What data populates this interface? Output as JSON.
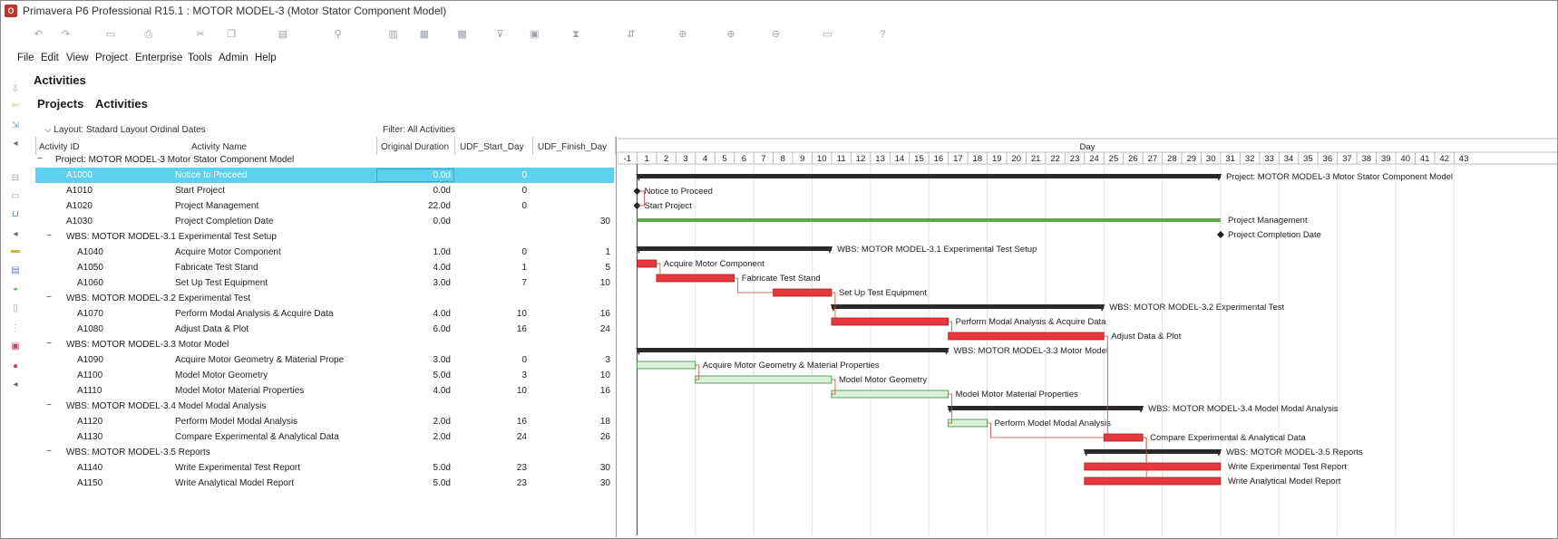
{
  "app": {
    "title": "Primavera P6 Professional R15.1 : MOTOR MODEL-3 (Motor Stator Component Model)",
    "logo_label": "O"
  },
  "menu": [
    "File",
    "Edit",
    "View",
    "Project",
    "Enterprise",
    "Tools",
    "Admin",
    "Help"
  ],
  "toolbar_icons": [
    "undo-icon",
    "redo-icon",
    "save-icon",
    "print-icon",
    "cut-icon",
    "copy-icon",
    "paste-icon",
    "link-icon",
    "layout-icon",
    "columns-icon",
    "bars-icon",
    "filter-icon",
    "group-icon",
    "schedule-icon",
    "level-icon",
    "assign-icon",
    "zoom-in-icon",
    "zoom-out-icon",
    "refresh-icon",
    "help-icon"
  ],
  "page": {
    "heading": "Activities",
    "tabs": {
      "projects": "Projects",
      "activities": "Activities"
    },
    "layout_label": "Layout: Stadard Layout Ordinal Dates",
    "filter_label": "Filter: All Activities"
  },
  "columns": {
    "activity_id": "Activity ID",
    "activity_name": "Activity Name",
    "original_duration": "Original Duration",
    "udf_start": "UDF_Start_Day",
    "udf_finish": "UDF_Finish_Day"
  },
  "rows": [
    {
      "type": "project",
      "id": "",
      "name": "Project: MOTOR MODEL-3  Motor Stator Component Model",
      "dur": "",
      "start": "",
      "finish": "",
      "expander": "−"
    },
    {
      "type": "activity",
      "id": "A1000",
      "name": "Notice to Proceed",
      "dur": "0.0d",
      "start": "0",
      "finish": "",
      "selected": true
    },
    {
      "type": "activity",
      "id": "A1010",
      "name": "Start Project",
      "dur": "0.0d",
      "start": "0",
      "finish": ""
    },
    {
      "type": "activity",
      "id": "A1020",
      "name": "Project Management",
      "dur": "22.0d",
      "start": "0",
      "finish": ""
    },
    {
      "type": "activity",
      "id": "A1030",
      "name": "Project Completion Date",
      "dur": "0.0d",
      "start": "",
      "finish": "30"
    },
    {
      "type": "wbs",
      "id": "",
      "name": "WBS: MOTOR MODEL-3.1  Experimental Test Setup",
      "dur": "",
      "start": "",
      "finish": "",
      "expander": "−"
    },
    {
      "type": "activity2",
      "id": "A1040",
      "name": "Acquire Motor Component",
      "dur": "1.0d",
      "start": "0",
      "finish": "1"
    },
    {
      "type": "activity2",
      "id": "A1050",
      "name": "Fabricate Test Stand",
      "dur": "4.0d",
      "start": "1",
      "finish": "5"
    },
    {
      "type": "activity2",
      "id": "A1060",
      "name": "Set Up Test Equipment",
      "dur": "3.0d",
      "start": "7",
      "finish": "10"
    },
    {
      "type": "wbs",
      "id": "",
      "name": "WBS: MOTOR MODEL-3.2  Experimental Test",
      "dur": "",
      "start": "",
      "finish": "",
      "expander": "−"
    },
    {
      "type": "activity2",
      "id": "A1070",
      "name": "Perform Modal Analysis & Acquire Data",
      "dur": "4.0d",
      "start": "10",
      "finish": "16"
    },
    {
      "type": "activity2",
      "id": "A1080",
      "name": "Adjust Data & Plot",
      "dur": "6.0d",
      "start": "16",
      "finish": "24"
    },
    {
      "type": "wbs",
      "id": "",
      "name": "WBS: MOTOR MODEL-3.3  Motor Model",
      "dur": "",
      "start": "",
      "finish": "",
      "expander": "−"
    },
    {
      "type": "activity2",
      "id": "A1090",
      "name": "Acquire Motor Geometry & Material Propertie",
      "dur": "3.0d",
      "start": "0",
      "finish": "3"
    },
    {
      "type": "activity2",
      "id": "A1100",
      "name": "Model Motor Geometry",
      "dur": "5.0d",
      "start": "3",
      "finish": "10"
    },
    {
      "type": "activity2",
      "id": "A1110",
      "name": "Model Motor Material Properties",
      "dur": "4.0d",
      "start": "10",
      "finish": "16"
    },
    {
      "type": "wbs",
      "id": "",
      "name": "WBS: MOTOR MODEL-3.4  Model Modal Analysis",
      "dur": "",
      "start": "",
      "finish": "",
      "expander": "−"
    },
    {
      "type": "activity2",
      "id": "A1120",
      "name": "Perform Model Modal Analysis",
      "dur": "2.0d",
      "start": "16",
      "finish": "18"
    },
    {
      "type": "activity2",
      "id": "A1130",
      "name": "Compare Experimental & Analytical Data",
      "dur": "2.0d",
      "start": "24",
      "finish": "26"
    },
    {
      "type": "wbs",
      "id": "",
      "name": "WBS: MOTOR MODEL-3.5  Reports",
      "dur": "",
      "start": "",
      "finish": "",
      "expander": "−"
    },
    {
      "type": "activity2",
      "id": "A1140",
      "name": "Write Experimental Test Report",
      "dur": "5.0d",
      "start": "23",
      "finish": "30"
    },
    {
      "type": "activity2",
      "id": "A1150",
      "name": "Write Analytical Model Report",
      "dur": "5.0d",
      "start": "23",
      "finish": "30"
    }
  ],
  "gantt": {
    "timescale_label": "Day",
    "day_labels": [
      "-1",
      "1",
      "2",
      "3",
      "4",
      "5",
      "6",
      "7",
      "8",
      "9",
      "10",
      "11",
      "12",
      "13",
      "14",
      "15",
      "16",
      "17",
      "18",
      "19",
      "20",
      "21",
      "22",
      "23",
      "24",
      "25",
      "26",
      "27",
      "28",
      "29",
      "30",
      "31",
      "32",
      "33",
      "34",
      "35",
      "36",
      "37",
      "38",
      "39",
      "40",
      "41",
      "42",
      "43"
    ],
    "colors": {
      "summary": "#2b2b2b",
      "critical": "#e8383d",
      "noncritical": "#d9f2d9",
      "noncritical_border": "#3a8a3a",
      "level_of_effort": "#5aaa4a",
      "milestone": "#222222",
      "relationship": "#d04040"
    },
    "bars": [
      {
        "row": 0,
        "kind": "summary",
        "start": 0,
        "finish": 30,
        "label": "Project: MOTOR MODEL-3  Motor Stator Component Model"
      },
      {
        "row": 1,
        "kind": "milestone",
        "start": 0,
        "label": "Notice to Proceed"
      },
      {
        "row": 2,
        "kind": "milestone",
        "start": 0,
        "label": "Start Project"
      },
      {
        "row": 3,
        "kind": "loe",
        "start": 0,
        "finish": 30,
        "label": "Project Management"
      },
      {
        "row": 4,
        "kind": "milestone",
        "start": 30,
        "label": "Project Completion Date"
      },
      {
        "row": 5,
        "kind": "summary",
        "start": 0,
        "finish": 10,
        "label": "WBS: MOTOR MODEL-3.1  Experimental Test Setup"
      },
      {
        "row": 6,
        "kind": "critical",
        "start": 0,
        "finish": 1,
        "label": "Acquire Motor Component"
      },
      {
        "row": 7,
        "kind": "critical",
        "start": 1,
        "finish": 5,
        "label": "Fabricate Test Stand"
      },
      {
        "row": 8,
        "kind": "critical",
        "start": 7,
        "finish": 10,
        "label": "Set Up Test Equipment"
      },
      {
        "row": 9,
        "kind": "summary",
        "start": 10,
        "finish": 24,
        "label": "WBS: MOTOR MODEL-3.2  Experimental Test"
      },
      {
        "row": 10,
        "kind": "critical",
        "start": 10,
        "finish": 16,
        "label": "Perform Modal Analysis & Acquire Data"
      },
      {
        "row": 11,
        "kind": "critical",
        "start": 16,
        "finish": 24,
        "label": "Adjust Data & Plot"
      },
      {
        "row": 12,
        "kind": "summary",
        "start": 0,
        "finish": 16,
        "label": "WBS: MOTOR MODEL-3.3  Motor Model"
      },
      {
        "row": 13,
        "kind": "noncritical",
        "start": 0,
        "finish": 3,
        "label": "Acquire Motor Geometry & Material Properties"
      },
      {
        "row": 14,
        "kind": "noncritical",
        "start": 3,
        "finish": 10,
        "label": "Model Motor Geometry"
      },
      {
        "row": 15,
        "kind": "noncritical",
        "start": 10,
        "finish": 16,
        "label": "Model Motor Material Properties"
      },
      {
        "row": 16,
        "kind": "summary",
        "start": 16,
        "finish": 26,
        "label": "WBS: MOTOR MODEL-3.4  Model Modal Analysis"
      },
      {
        "row": 17,
        "kind": "noncritical",
        "start": 16,
        "finish": 18,
        "label": "Perform Model Modal Analysis"
      },
      {
        "row": 18,
        "kind": "critical",
        "start": 24,
        "finish": 26,
        "label": "Compare Experimental & Analytical Data"
      },
      {
        "row": 19,
        "kind": "summary",
        "start": 23,
        "finish": 30,
        "label": "WBS: MOTOR MODEL-3.5  Reports"
      },
      {
        "row": 20,
        "kind": "critical",
        "start": 23,
        "finish": 30,
        "label": "Write Experimental Test Report"
      },
      {
        "row": 21,
        "kind": "critical",
        "start": 23,
        "finish": 30,
        "label": "Write Analytical Model Report"
      }
    ]
  }
}
